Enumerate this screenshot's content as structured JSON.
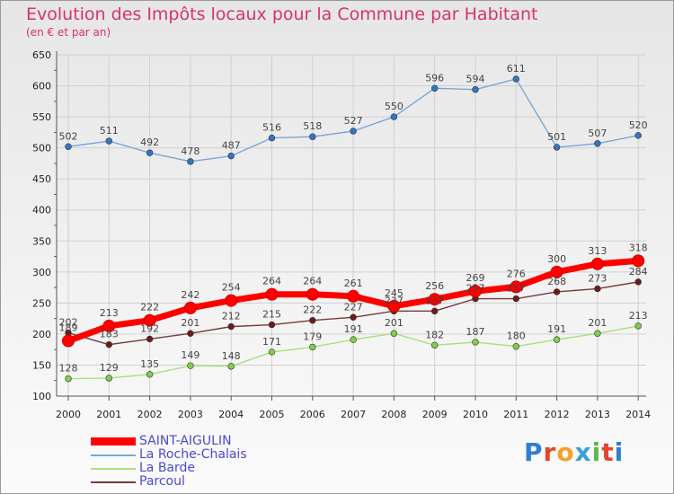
{
  "chart_data": {
    "type": "line",
    "title": "Evolution des Impôts locaux pour la Commune par Habitant",
    "subtitle": "(en € et par an)",
    "categories": [
      "2000",
      "2001",
      "2002",
      "2003",
      "2004",
      "2005",
      "2006",
      "2007",
      "2008",
      "2009",
      "2010",
      "2011",
      "2012",
      "2013",
      "2014"
    ],
    "ylim": [
      100,
      650
    ],
    "yticks": [
      100,
      150,
      200,
      250,
      300,
      350,
      400,
      450,
      500,
      550,
      600,
      650
    ],
    "series": [
      {
        "name": "La Roche-Chalais",
        "color": "#7aa6d6",
        "marker": "#2f78c4",
        "values": [
          502,
          511,
          492,
          478,
          487,
          516,
          518,
          527,
          550,
          596,
          594,
          611,
          501,
          507,
          520
        ],
        "labels": [
          "502",
          "511",
          "492",
          "478",
          "487",
          "516",
          "518",
          "527",
          "550",
          "596",
          "594",
          "611",
          "501",
          "507",
          "520"
        ]
      },
      {
        "name": "La Barde",
        "color": "#a8e07f",
        "marker": "#7ed04a",
        "values": [
          128,
          129,
          135,
          149,
          148,
          171,
          179,
          191,
          201,
          182,
          187,
          180,
          191,
          201,
          213
        ],
        "labels": [
          "128",
          "129",
          "135",
          "149",
          "148",
          "171",
          "179",
          "191",
          "201",
          "182",
          "187",
          "180",
          "191",
          "201",
          "213"
        ]
      },
      {
        "name": "Parcoul",
        "color": "#7a3a3a",
        "marker": "#6e1a1a",
        "values": [
          202,
          183,
          192,
          201,
          212,
          215,
          222,
          227,
          237,
          237,
          257,
          257,
          268,
          273,
          284
        ],
        "labels": [
          "202",
          "183",
          "192",
          "201",
          "212",
          "215",
          "222",
          "227",
          "237",
          "237",
          "257",
          "257",
          "268",
          "273",
          "284"
        ]
      },
      {
        "name": "SAINT-AIGULIN",
        "color": "#ff0000",
        "marker": "#ff0000",
        "values": [
          189,
          213,
          222,
          242,
          254,
          264,
          264,
          261,
          245,
          256,
          269,
          276,
          300,
          313,
          318
        ],
        "labels": [
          "189",
          "213",
          "222",
          "242",
          "254",
          "264",
          "264",
          "261",
          "245",
          "256",
          "269",
          "276",
          "300",
          "313",
          "318"
        ]
      }
    ],
    "legend": [
      "SAINT-AIGULIN",
      "La Roche-Chalais",
      "La Barde",
      "Parcoul"
    ]
  },
  "logo": {
    "letters": [
      "P",
      "r",
      "o",
      "x",
      "i",
      "t",
      "i"
    ]
  }
}
